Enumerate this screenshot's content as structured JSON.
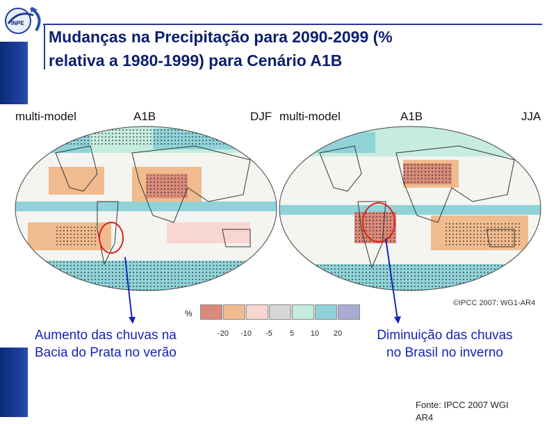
{
  "slide": {
    "title_line1": "Mudanças na Precipitação para 2090-2099 (%",
    "title_line2": "relativa a 1980-1999) para Cenário A1B",
    "logo_text": "INPE"
  },
  "maps": {
    "left": {
      "model": "multi-model",
      "scenario": "A1B",
      "season": "DJF"
    },
    "right": {
      "model": "multi-model",
      "scenario": "A1B",
      "season": "JJA"
    },
    "copyright": "©IPCC 2007: WG1-AR4"
  },
  "legend": {
    "unit": "%",
    "ticks": [
      "-20",
      "-10",
      "-5",
      "5",
      "10",
      "20"
    ],
    "colors": [
      "#d98a78",
      "#f0bb8e",
      "#f8d7d2",
      "#d6d6d6",
      "#c5ecdf",
      "#8fd3d8",
      "#a9abd6"
    ]
  },
  "captions": {
    "left_line1": "Aumento das chuvas na",
    "left_line2": "Bacia do Prata no verão",
    "right_line1": "Diminuição das chuvas",
    "right_line2": "no Brasil no inverno"
  },
  "source": {
    "line1": "Fonte: IPCC 2007 WGI",
    "line2": "AR4"
  },
  "colors": {
    "title": "#0a1f6e",
    "caption": "#1424b8",
    "bar": "#1c3f9e",
    "highlight_circle": "#e02020"
  }
}
